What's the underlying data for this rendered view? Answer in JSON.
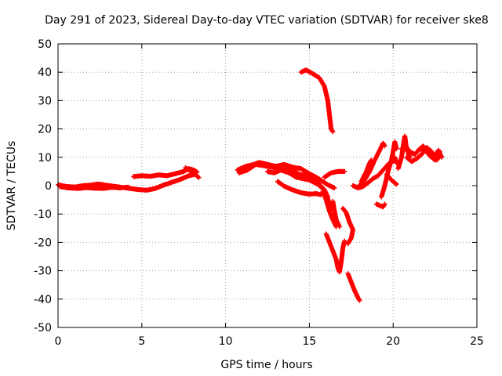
{
  "chart_data": {
    "type": "scatter",
    "title": "Day 291 of 2023, Sidereal Day-to-day VTEC variation (SDTVAR) for receiver ske8",
    "xlabel": "GPS time / hours",
    "ylabel": "SDTVAR / TECUs",
    "xlim": [
      0,
      25
    ],
    "ylim": [
      -50,
      50
    ],
    "xticks": [
      0,
      5,
      10,
      15,
      20,
      25
    ],
    "yticks": [
      -50,
      -40,
      -30,
      -20,
      -10,
      0,
      10,
      20,
      30,
      40,
      50
    ],
    "grid": true,
    "marker": "+",
    "series": [
      {
        "name": "ske8",
        "color": "#ff0000",
        "tracks": [
          [
            [
              0.0,
              0.3
            ],
            [
              0.5,
              -0.3
            ],
            [
              1.0,
              -0.5
            ],
            [
              1.5,
              0.0
            ],
            [
              2.0,
              0.2
            ],
            [
              2.4,
              0.6
            ],
            [
              2.8,
              0.2
            ],
            [
              3.3,
              -0.2
            ],
            [
              3.8,
              -0.6
            ],
            [
              4.3,
              -1.0
            ],
            [
              4.8,
              -1.4
            ],
            [
              5.3,
              -1.6
            ],
            [
              5.8,
              -1.0
            ],
            [
              6.3,
              0.2
            ],
            [
              6.8,
              1.2
            ],
            [
              7.3,
              2.2
            ],
            [
              7.8,
              3.5
            ],
            [
              8.2,
              4.0
            ]
          ],
          [
            [
              0.1,
              -0.3
            ],
            [
              0.6,
              -0.8
            ],
            [
              1.2,
              -1.0
            ],
            [
              1.7,
              -0.7
            ],
            [
              2.2,
              -0.9
            ],
            [
              2.7,
              -1.0
            ],
            [
              3.2,
              -0.6
            ],
            [
              3.7,
              -0.8
            ],
            [
              4.2,
              -0.5
            ]
          ],
          [
            [
              4.5,
              3.2
            ],
            [
              5.0,
              3.5
            ],
            [
              5.5,
              3.3
            ],
            [
              6.0,
              3.8
            ],
            [
              6.5,
              3.5
            ],
            [
              7.0,
              4.2
            ],
            [
              7.5,
              5.0
            ],
            [
              7.8,
              6.0
            ],
            [
              8.1,
              5.5
            ],
            [
              8.3,
              4.8
            ]
          ],
          [
            [
              7.6,
              6.3
            ],
            [
              7.9,
              5.2
            ],
            [
              8.2,
              4.0
            ],
            [
              8.4,
              2.8
            ]
          ],
          [
            [
              14.5,
              40.0
            ],
            [
              14.8,
              40.8
            ],
            [
              15.2,
              39.5
            ],
            [
              15.6,
              38.0
            ],
            [
              15.9,
              35.0
            ],
            [
              16.1,
              30.0
            ],
            [
              16.2,
              25.0
            ],
            [
              16.3,
              20.0
            ],
            [
              16.4,
              19.0
            ]
          ],
          [
            [
              10.7,
              5.5
            ],
            [
              11.2,
              6.8
            ],
            [
              11.7,
              7.5
            ],
            [
              12.0,
              8.2
            ],
            [
              12.5,
              7.5
            ],
            [
              13.0,
              6.8
            ],
            [
              13.5,
              7.5
            ],
            [
              14.0,
              6.5
            ],
            [
              14.5,
              6.0
            ],
            [
              15.0,
              4.2
            ],
            [
              15.4,
              3.0
            ],
            [
              15.8,
              1.5
            ],
            [
              16.1,
              0.3
            ],
            [
              16.5,
              -0.8
            ]
          ],
          [
            [
              10.8,
              4.5
            ],
            [
              11.3,
              5.5
            ],
            [
              11.8,
              7.5
            ],
            [
              12.3,
              7.0
            ],
            [
              12.8,
              6.5
            ],
            [
              13.3,
              5.5
            ],
            [
              13.8,
              4.5
            ],
            [
              14.2,
              3.0
            ],
            [
              14.6,
              2.5
            ],
            [
              15.0,
              2.0
            ],
            [
              15.5,
              0.5
            ],
            [
              15.9,
              -1.5
            ],
            [
              16.1,
              -4.0
            ]
          ],
          [
            [
              12.5,
              5.0
            ],
            [
              12.9,
              4.5
            ],
            [
              13.3,
              5.5
            ],
            [
              13.7,
              6.0
            ],
            [
              14.1,
              5.0
            ],
            [
              14.4,
              4.0
            ],
            [
              14.8,
              3.5
            ],
            [
              15.2,
              2.0
            ],
            [
              15.5,
              1.0
            ]
          ],
          [
            [
              13.1,
              1.5
            ],
            [
              13.5,
              -0.2
            ],
            [
              14.0,
              -1.5
            ],
            [
              14.5,
              -2.5
            ],
            [
              15.0,
              -3.0
            ],
            [
              15.4,
              -2.8
            ],
            [
              15.7,
              -3.2
            ]
          ],
          [
            [
              14.8,
              4.0
            ],
            [
              15.3,
              2.2
            ],
            [
              15.6,
              0.5
            ],
            [
              15.9,
              -1.5
            ],
            [
              16.1,
              -4.5
            ],
            [
              16.3,
              -8.5
            ]
          ],
          [
            [
              15.8,
              -2.0
            ],
            [
              16.0,
              -5.0
            ],
            [
              16.2,
              -9.0
            ],
            [
              16.4,
              -12.0
            ],
            [
              16.6,
              -14.5
            ]
          ],
          [
            [
              15.9,
              3.0
            ],
            [
              16.3,
              4.5
            ],
            [
              16.7,
              5.0
            ],
            [
              17.1,
              5.0
            ]
          ],
          [
            [
              16.0,
              -17.0
            ],
            [
              16.2,
              -20.0
            ],
            [
              16.4,
              -23.0
            ],
            [
              16.6,
              -26.0
            ],
            [
              16.7,
              -29.0
            ],
            [
              16.8,
              -30.5
            ],
            [
              16.9,
              -27.0
            ],
            [
              17.0,
              -22.0
            ],
            [
              17.1,
              -19.5
            ]
          ],
          [
            [
              16.4,
              -5.5
            ],
            [
              16.5,
              -9.0
            ],
            [
              16.6,
              -12.0
            ],
            [
              16.8,
              -14.5
            ]
          ],
          [
            [
              17.0,
              -8.0
            ],
            [
              17.2,
              -9.5
            ],
            [
              17.4,
              -13.0
            ],
            [
              17.6,
              -15.5
            ],
            [
              17.5,
              -18.5
            ],
            [
              17.3,
              -20.5
            ]
          ],
          [
            [
              17.3,
              -31.0
            ],
            [
              17.5,
              -34.0
            ],
            [
              17.7,
              -37.0
            ],
            [
              17.9,
              -39.5
            ],
            [
              18.0,
              -40.5
            ]
          ],
          [
            [
              17.6,
              0.0
            ],
            [
              17.9,
              -0.8
            ],
            [
              18.2,
              -0.3
            ],
            [
              18.5,
              1.0
            ],
            [
              18.8,
              2.5
            ],
            [
              19.1,
              3.5
            ],
            [
              19.4,
              5.5
            ],
            [
              19.7,
              7.5
            ],
            [
              19.9,
              8.5
            ]
          ],
          [
            [
              17.9,
              -0.5
            ],
            [
              18.3,
              2.0
            ],
            [
              18.6,
              5.0
            ],
            [
              18.9,
              9.0
            ],
            [
              19.2,
              12.5
            ],
            [
              19.4,
              15.0
            ],
            [
              19.5,
              14.0
            ]
          ],
          [
            [
              18.1,
              1.5
            ],
            [
              18.4,
              5.0
            ],
            [
              18.6,
              8.0
            ],
            [
              18.7,
              9.0
            ]
          ],
          [
            [
              19.0,
              -6.5
            ],
            [
              19.2,
              -7.0
            ],
            [
              19.4,
              -7.5
            ],
            [
              19.5,
              -6.5
            ]
          ],
          [
            [
              19.3,
              -4.0
            ],
            [
              19.5,
              0.0
            ],
            [
              19.7,
              5.0
            ],
            [
              19.9,
              9.0
            ],
            [
              20.0,
              12.0
            ],
            [
              20.1,
              15.5
            ],
            [
              20.2,
              13.0
            ]
          ],
          [
            [
              19.6,
              4.0
            ],
            [
              19.9,
              2.0
            ],
            [
              20.1,
              1.0
            ],
            [
              20.2,
              0.5
            ]
          ],
          [
            [
              20.0,
              8.5
            ],
            [
              20.1,
              10.0
            ],
            [
              20.2,
              8.0
            ]
          ],
          [
            [
              20.3,
              6.0
            ],
            [
              20.5,
              10.0
            ],
            [
              20.6,
              14.0
            ],
            [
              20.7,
              17.5
            ],
            [
              20.8,
              13.0
            ],
            [
              21.0,
              10.0
            ]
          ],
          [
            [
              20.5,
              13.0
            ],
            [
              20.8,
              13.5
            ],
            [
              21.0,
              12.0
            ],
            [
              21.3,
              11.0
            ],
            [
              21.6,
              13.0
            ],
            [
              21.9,
              12.5
            ],
            [
              22.2,
              10.5
            ],
            [
              22.5,
              9.0
            ],
            [
              22.8,
              12.0
            ]
          ],
          [
            [
              20.8,
              10.0
            ],
            [
              21.1,
              8.5
            ],
            [
              21.4,
              9.5
            ],
            [
              21.7,
              11.0
            ],
            [
              22.0,
              13.5
            ],
            [
              22.3,
              12.0
            ],
            [
              22.6,
              9.0
            ],
            [
              22.8,
              10.5
            ]
          ],
          [
            [
              21.5,
              12.5
            ],
            [
              21.8,
              14.0
            ],
            [
              22.1,
              11.5
            ],
            [
              22.4,
              9.5
            ],
            [
              22.7,
              12.5
            ],
            [
              22.9,
              10.0
            ]
          ]
        ]
      }
    ]
  }
}
